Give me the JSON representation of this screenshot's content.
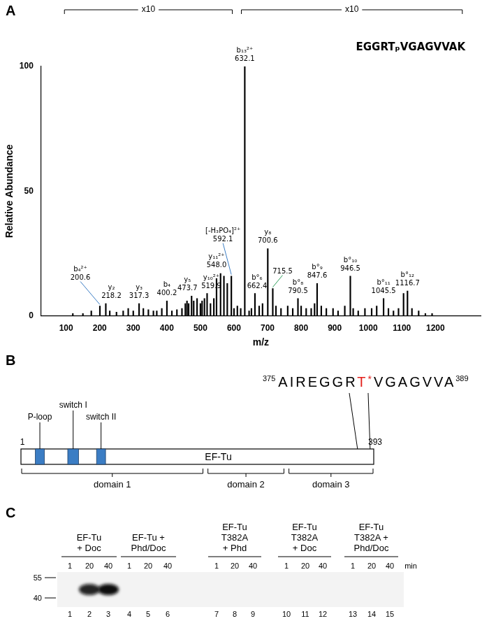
{
  "chart_data": {
    "panel": "A",
    "type": "bar",
    "title": "EGGRTₚVGAGVVAK",
    "x_label": "m/z",
    "y_label": "Relative Abundance",
    "color": "#000000",
    "grid": false,
    "xlim": [
      80,
      1280
    ],
    "xticks": [
      100,
      200,
      300,
      400,
      500,
      600,
      700,
      800,
      900,
      1000,
      1100,
      1200
    ],
    "ylim": [
      0,
      100
    ],
    "yticks": [
      0,
      50,
      100
    ],
    "x": [
      120,
      150,
      175,
      200.6,
      218.2,
      230,
      250,
      270,
      285,
      300,
      317.3,
      330,
      345,
      360,
      370,
      385,
      400.2,
      415,
      430,
      445,
      455,
      460,
      465,
      473.7,
      480,
      490,
      500,
      505,
      512,
      519.9,
      530,
      540,
      548.0,
      560,
      570,
      580,
      592.1,
      600,
      610,
      620,
      632.1,
      645,
      652,
      662.4,
      675,
      685,
      700.6,
      715.5,
      725,
      740,
      760,
      775,
      790.5,
      800,
      815,
      830,
      840,
      847.6,
      860,
      875,
      895,
      910,
      930,
      946.5,
      955,
      970,
      990,
      1010,
      1025,
      1045.5,
      1060,
      1075,
      1090,
      1105,
      1116.7,
      1130,
      1150,
      1170,
      1190
    ],
    "values": [
      1,
      1,
      2,
      4,
      5,
      2,
      1.5,
      2,
      3,
      2,
      5,
      3,
      2.5,
      2,
      2,
      3,
      6,
      2,
      2.5,
      3,
      5,
      6,
      5,
      8,
      6,
      7,
      5,
      6,
      7,
      9,
      5,
      7,
      15,
      17,
      16,
      13,
      16,
      3,
      4,
      3,
      100,
      2,
      3,
      9,
      4,
      5,
      27,
      11,
      4,
      3,
      4,
      3,
      7,
      4,
      3,
      3,
      5,
      13,
      4,
      3,
      3,
      2,
      4,
      16,
      3,
      2,
      3,
      3,
      4,
      7,
      3,
      2,
      3,
      9,
      10,
      3,
      2,
      1,
      1
    ],
    "annotations": [
      {
        "x": 200.6,
        "label": "b₄²⁺"
      },
      {
        "x": 218.2,
        "label": "y₂"
      },
      {
        "x": 317.3,
        "label": "y₃"
      },
      {
        "x": 400.2,
        "label": "b₄"
      },
      {
        "x": 473.7,
        "label": "y₅"
      },
      {
        "x": 519.9,
        "label": "y₁₀²⁺"
      },
      {
        "x": 548.0,
        "label": "y₁₁²⁺"
      },
      {
        "x": 592.1,
        "label": "[-H₃PO₄]²⁺"
      },
      {
        "x": 632.1,
        "label": "b₁₃²⁺"
      },
      {
        "x": 662.4,
        "label": "b°₆"
      },
      {
        "x": 700.6,
        "label": "y₈"
      },
      {
        "x": 715.5
      },
      {
        "x": 790.5,
        "label": "b°₈"
      },
      {
        "x": 847.6,
        "label": "b°₉"
      },
      {
        "x": 946.5,
        "label": "b°₁₀"
      },
      {
        "x": 1045.5,
        "label": "b°₁₁"
      },
      {
        "x": 1116.7,
        "label": "b°₁₂"
      }
    ],
    "magnifications": [
      {
        "text": "x10",
        "range": [
          95,
          595
        ]
      },
      {
        "text": "x10",
        "range": [
          622,
          1280
        ]
      }
    ]
  },
  "panel_b": {
    "label": "B",
    "protein": "EF-Tu",
    "start": 1,
    "end": 393,
    "feature_color": "#3b7dc4",
    "features": [
      {
        "name": "P-loop",
        "start": 17,
        "end": 27
      },
      {
        "name": "switch I",
        "start": 53,
        "end": 65
      },
      {
        "name": "switch II",
        "start": 85,
        "end": 95
      }
    ],
    "domains": [
      {
        "name": "domain 1",
        "start": 1,
        "end": 204
      },
      {
        "name": "domain 2",
        "start": 208,
        "end": 294
      },
      {
        "name": "domain 3",
        "start": 298,
        "end": 393
      }
    ],
    "sequence": {
      "start": 375,
      "end": 389,
      "before": "AIREGGR",
      "site": "T",
      "site_mark": "*",
      "after": "VGAGVVA",
      "site_color": "#e3201b"
    }
  },
  "panel_c": {
    "label": "C",
    "groups": [
      {
        "title": [
          "EF-Tu",
          "+ Doc"
        ],
        "times": [
          1,
          20,
          40
        ]
      },
      {
        "title": [
          "EF-Tu +",
          "Phd/Doc"
        ],
        "times": [
          1,
          20,
          40
        ]
      },
      {
        "title": [
          "EF-Tu",
          "T382A",
          "+ Phd"
        ],
        "times": [
          1,
          20,
          40
        ]
      },
      {
        "title": [
          "EF-Tu",
          "T382A",
          "+ Doc"
        ],
        "times": [
          1,
          20,
          40
        ]
      },
      {
        "title": [
          "EF-Tu",
          "T382A +",
          "Phd/Doc"
        ],
        "times": [
          1,
          20,
          40
        ]
      }
    ],
    "time_unit": "min",
    "lanes": [
      1,
      2,
      3,
      4,
      5,
      6,
      7,
      8,
      9,
      10,
      11,
      12,
      13,
      14,
      15
    ],
    "band_intensity": [
      0,
      0.9,
      1,
      0,
      0,
      0,
      0,
      0,
      0,
      0,
      0,
      0,
      0,
      0,
      0
    ],
    "markers": [
      55,
      40
    ]
  }
}
